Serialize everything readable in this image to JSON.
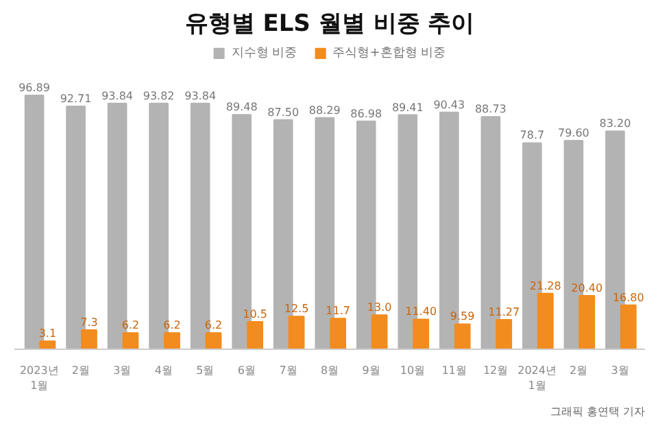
{
  "chart_data": {
    "type": "bar",
    "title": "유형별 ELS 월별 비중 추이",
    "categories": [
      "2023년\n1월",
      "2월",
      "3월",
      "4월",
      "5월",
      "6월",
      "7월",
      "8월",
      "9월",
      "10월",
      "11월",
      "12월",
      "2024년\n1월",
      "2월",
      "3월"
    ],
    "series": [
      {
        "name": "지수형 비중",
        "color": "#b3b3b3",
        "values": [
          96.89,
          92.71,
          93.84,
          93.82,
          93.84,
          89.48,
          87.5,
          88.29,
          86.98,
          89.41,
          90.43,
          88.73,
          78.7,
          79.6,
          83.2
        ],
        "value_labels": [
          "96.89",
          "92.71",
          "93.84",
          "93.82",
          "93.84",
          "89.48",
          "87.50",
          "88.29",
          "86.98",
          "89.41",
          "90.43",
          "88.73",
          "78.7",
          "79.60",
          "83.20"
        ]
      },
      {
        "name": "주식형+혼합형 비중",
        "color": "#f28c1e",
        "values": [
          3.1,
          7.3,
          6.2,
          6.2,
          6.2,
          10.5,
          12.5,
          11.7,
          13.0,
          11.4,
          9.59,
          11.27,
          21.28,
          20.4,
          16.8
        ],
        "value_labels": [
          "3.1",
          "7.3",
          "6.2",
          "6.2",
          "6.2",
          "10.5",
          "12.5",
          "11.7",
          "13.0",
          "11.40",
          "9.59",
          "11.27",
          "21.28",
          "20.40",
          "16.80"
        ]
      }
    ],
    "legend": "top",
    "annotations": [
      "그래픽 홍연택 기자"
    ]
  }
}
